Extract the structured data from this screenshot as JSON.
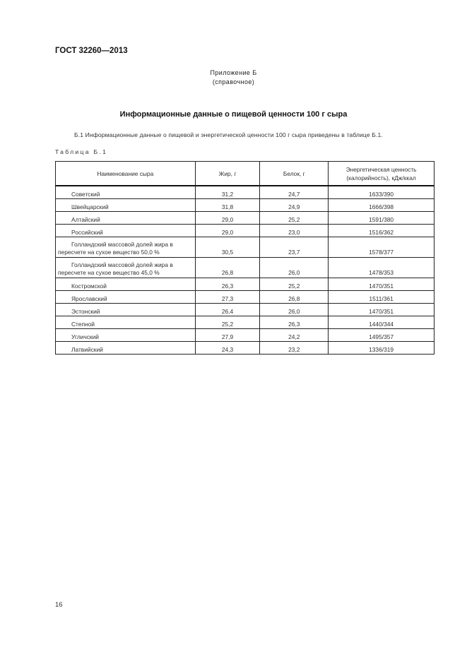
{
  "header": {
    "doc_code": "ГОСТ 32260—2013"
  },
  "appendix": {
    "title": "Приложение Б",
    "subtitle": "(справочное)"
  },
  "section_title": "Информационные данные о пищевой ценности 100 г сыра",
  "paragraph": "Б.1  Информационные данные о пищевой и энергетической ценности 100 г сыра приведены в таблице Б.1.",
  "table_label": "Таблица Б.1",
  "table": {
    "headers": [
      "Наименование сыра",
      "Жир, г",
      "Белок, г",
      "Энергетическая ценность (калорийность), кДж/ккал"
    ],
    "rows": [
      {
        "name": "Советский",
        "fat": "31,2",
        "protein": "24,7",
        "energy": "1633/390"
      },
      {
        "name": "Швейцарский",
        "fat": "31,8",
        "protein": "24,9",
        "energy": "1666/398"
      },
      {
        "name": "Алтайский",
        "fat": "29,0",
        "protein": "25,2",
        "energy": "1591/380"
      },
      {
        "name": "Российский",
        "fat": "29,0",
        "protein": "23,0",
        "energy": "1516/362"
      },
      {
        "name": "Голландский массовой долей жира в",
        "name2": "пересчете на сухое вещество 50,0 %",
        "fat": "30,5",
        "protein": "23,7",
        "energy": "1578/377"
      },
      {
        "name": "Голландский массовой долей жира в",
        "name2": "пересчете на сухое вещество 45,0 %",
        "fat": "26,8",
        "protein": "26,0",
        "energy": "1478/353"
      },
      {
        "name": "Костромской",
        "fat": "26,3",
        "protein": "25,2",
        "energy": "1470/351"
      },
      {
        "name": "Ярославский",
        "fat": "27,3",
        "protein": "26,8",
        "energy": "1511/361"
      },
      {
        "name": "Эстонский",
        "fat": "26,4",
        "protein": "26,0",
        "energy": "1470/351"
      },
      {
        "name": "Степной",
        "fat": "25,2",
        "protein": "26,3",
        "energy": "1440/344"
      },
      {
        "name": "Угличский",
        "fat": "27,9",
        "protein": "24,2",
        "energy": "1495/357"
      },
      {
        "name": "Латвийский",
        "fat": "24,3",
        "protein": "23,2",
        "energy": "1336/319"
      }
    ]
  },
  "page_number": "16"
}
